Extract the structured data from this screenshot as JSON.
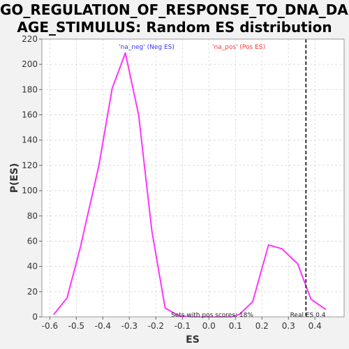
{
  "chart_data": {
    "type": "line",
    "title_line1": "GO_REGULATION_OF_RESPONSE_TO_DNA_DAM",
    "title_line2": "AGE_STIMULUS: Random ES distribution",
    "xlabel": "ES",
    "ylabel": "P(ES)",
    "xlim": [
      -0.63,
      0.51
    ],
    "ylim": [
      0,
      220
    ],
    "x_ticks": [
      -0.6,
      -0.5,
      -0.4,
      -0.3,
      -0.2,
      -0.1,
      0.0,
      0.1,
      0.2,
      0.3,
      0.4
    ],
    "x_tick_labels": [
      "-0.6",
      "-0.5",
      "-0.4",
      "-0.3",
      "-0.2",
      "-0.1",
      "0.0",
      "0.1",
      "0.2",
      "0.3",
      "0.4"
    ],
    "y_ticks": [
      0,
      20,
      40,
      60,
      80,
      100,
      120,
      140,
      160,
      180,
      200,
      220
    ],
    "y_tick_labels": [
      "0",
      "20",
      "40",
      "60",
      "80",
      "100",
      "120",
      "140",
      "160",
      "180",
      "200",
      "220"
    ],
    "grid": true,
    "series": [
      {
        "color": "#ff33ff",
        "x": [
          -0.585,
          -0.535,
          -0.485,
          -0.415,
          -0.365,
          -0.315,
          -0.265,
          -0.215,
          -0.165,
          -0.115,
          -0.065,
          -0.015,
          0.035,
          0.085,
          0.115,
          0.165,
          0.225,
          0.275,
          0.335,
          0.385,
          0.44
        ],
        "y": [
          2,
          15,
          55,
          120,
          181,
          209,
          160,
          68,
          7,
          1,
          0,
          0,
          0,
          0,
          2,
          12,
          57,
          54,
          42,
          14,
          6
        ]
      }
    ],
    "legend": [
      {
        "label": "'na_neg' (Neg ES)",
        "color": "#3333ff"
      },
      {
        "label": "'na_pos' (Pos ES)",
        "color": "#ff3333"
      }
    ],
    "real_es": 0.366,
    "real_es_label": "Real ES 0.4",
    "pos_scores_label": "Sets with pos scores: 18%"
  }
}
